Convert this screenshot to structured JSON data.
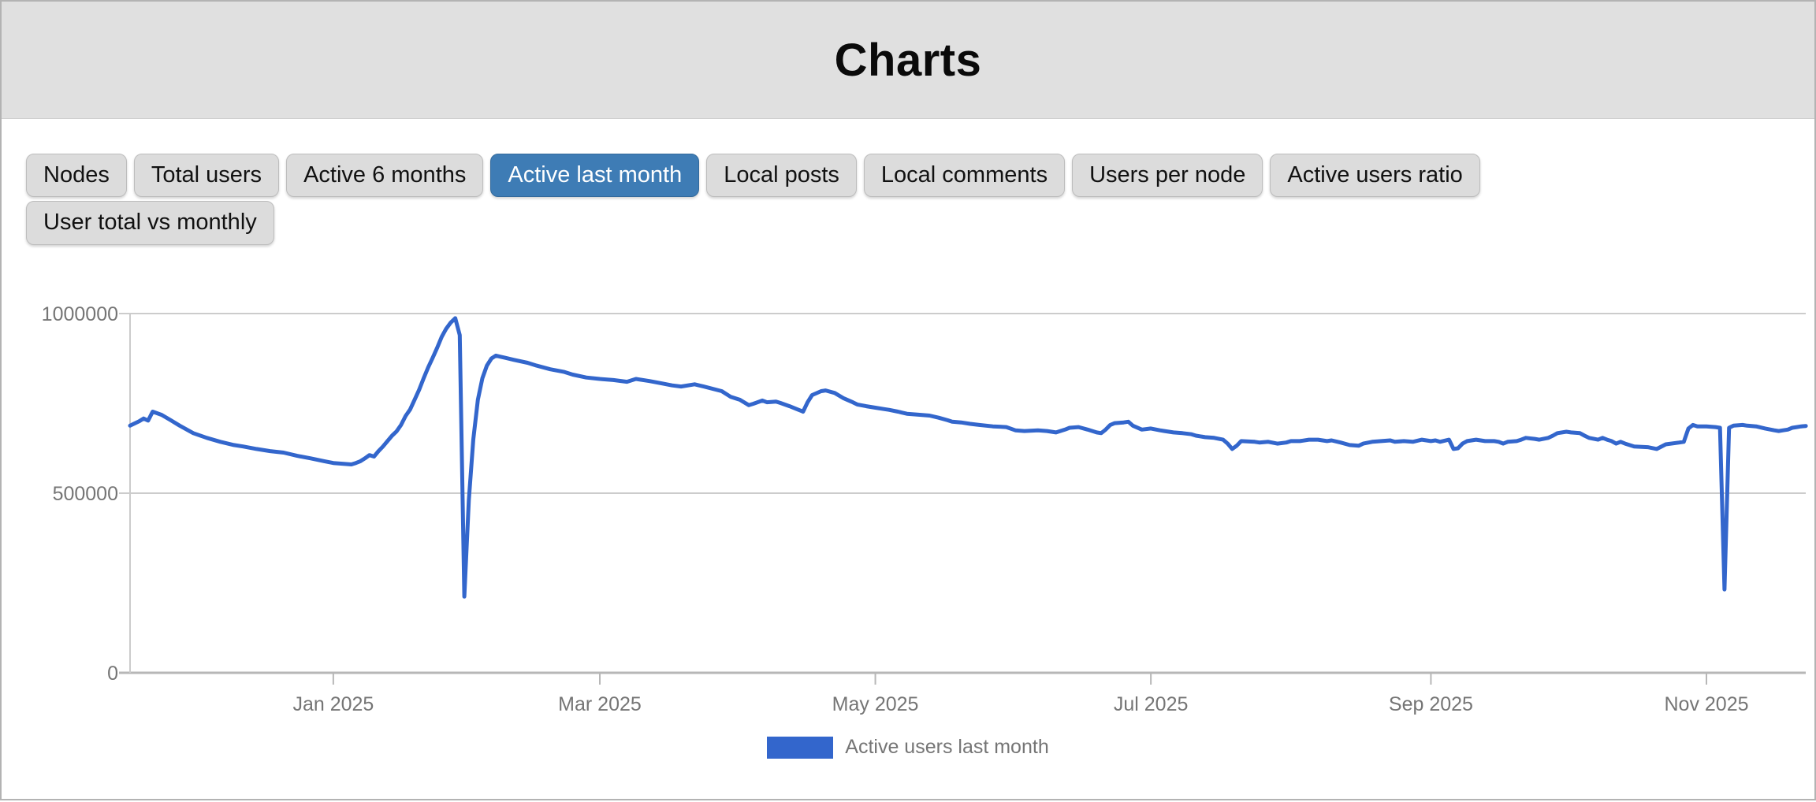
{
  "header": {
    "title": "Charts"
  },
  "tabs": [
    {
      "label": "Nodes",
      "active": false
    },
    {
      "label": "Total users",
      "active": false
    },
    {
      "label": "Active 6 months",
      "active": false
    },
    {
      "label": "Active last month",
      "active": true
    },
    {
      "label": "Local posts",
      "active": false
    },
    {
      "label": "Local comments",
      "active": false
    },
    {
      "label": "Users per node",
      "active": false
    },
    {
      "label": "Active users ratio",
      "active": false
    },
    {
      "label": "User total vs monthly",
      "active": false
    }
  ],
  "colors": {
    "active_tab_blue": "#3e7cb5",
    "line_blue": "#3366cc",
    "gridline": "#cccccc",
    "axis": "#b7b7b7",
    "axis_label": "#757575"
  },
  "chart_data": {
    "type": "line",
    "title": "",
    "xlabel": "",
    "ylabel": "",
    "ylim": [
      0,
      1000000
    ],
    "grid": true,
    "legend_position": "bottom",
    "x_start_date": "2024-11-17",
    "x_total_days": 371,
    "x_ticks": [
      {
        "day": 45,
        "label": "Jan 2025"
      },
      {
        "day": 104,
        "label": "Mar 2025"
      },
      {
        "day": 165,
        "label": "May 2025"
      },
      {
        "day": 226,
        "label": "Jul 2025"
      },
      {
        "day": 288,
        "label": "Sep 2025"
      },
      {
        "day": 349,
        "label": "Nov 2025"
      }
    ],
    "y_ticks": [
      {
        "value": 0,
        "label": "0"
      },
      {
        "value": 500000,
        "label": "500000"
      },
      {
        "value": 1000000,
        "label": "1000000"
      }
    ],
    "legend": {
      "label": "Active users last month"
    },
    "series": [
      {
        "name": "Active users last month",
        "color": "#3366cc",
        "points": [
          [
            0,
            688000
          ],
          [
            2,
            700000
          ],
          [
            3,
            708000
          ],
          [
            4,
            702000
          ],
          [
            5,
            727000
          ],
          [
            7,
            718000
          ],
          [
            9,
            703000
          ],
          [
            11,
            688000
          ],
          [
            14,
            667000
          ],
          [
            17,
            654000
          ],
          [
            20,
            643000
          ],
          [
            23,
            634000
          ],
          [
            25,
            630000
          ],
          [
            28,
            623000
          ],
          [
            31,
            617000
          ],
          [
            34,
            613000
          ],
          [
            37,
            604000
          ],
          [
            40,
            597000
          ],
          [
            43,
            589000
          ],
          [
            45,
            584000
          ],
          [
            47,
            582000
          ],
          [
            49,
            580000
          ],
          [
            50,
            584000
          ],
          [
            51,
            589000
          ],
          [
            52,
            597000
          ],
          [
            53,
            606000
          ],
          [
            54,
            602000
          ],
          [
            55,
            617000
          ],
          [
            56,
            630000
          ],
          [
            57,
            645000
          ],
          [
            58,
            660000
          ],
          [
            59,
            672000
          ],
          [
            60,
            690000
          ],
          [
            61,
            715000
          ],
          [
            62,
            733000
          ],
          [
            63,
            760000
          ],
          [
            64,
            788000
          ],
          [
            65,
            820000
          ],
          [
            66,
            850000
          ],
          [
            67,
            877000
          ],
          [
            68,
            905000
          ],
          [
            69,
            935000
          ],
          [
            70,
            958000
          ],
          [
            71,
            975000
          ],
          [
            72,
            987000
          ],
          [
            73,
            940000
          ],
          [
            74,
            212000
          ],
          [
            75,
            480000
          ],
          [
            76,
            650000
          ],
          [
            77,
            760000
          ],
          [
            78,
            820000
          ],
          [
            79,
            855000
          ],
          [
            80,
            875000
          ],
          [
            81,
            883000
          ],
          [
            83,
            877000
          ],
          [
            85,
            871000
          ],
          [
            88,
            863000
          ],
          [
            90,
            855000
          ],
          [
            93,
            845000
          ],
          [
            96,
            838000
          ],
          [
            98,
            830000
          ],
          [
            101,
            822000
          ],
          [
            104,
            818000
          ],
          [
            107,
            815000
          ],
          [
            110,
            810000
          ],
          [
            112,
            818000
          ],
          [
            115,
            812000
          ],
          [
            118,
            805000
          ],
          [
            120,
            800000
          ],
          [
            122,
            797000
          ],
          [
            125,
            803000
          ],
          [
            127,
            797000
          ],
          [
            131,
            784000
          ],
          [
            133,
            768000
          ],
          [
            135,
            760000
          ],
          [
            137,
            745000
          ],
          [
            138,
            749000
          ],
          [
            140,
            758000
          ],
          [
            141,
            753000
          ],
          [
            143,
            755000
          ],
          [
            144,
            751000
          ],
          [
            146,
            742000
          ],
          [
            148,
            732000
          ],
          [
            149,
            727000
          ],
          [
            150,
            753000
          ],
          [
            151,
            773000
          ],
          [
            153,
            784000
          ],
          [
            154,
            786000
          ],
          [
            156,
            779000
          ],
          [
            158,
            764000
          ],
          [
            160,
            753000
          ],
          [
            161,
            747000
          ],
          [
            163,
            742000
          ],
          [
            165,
            738000
          ],
          [
            167,
            734000
          ],
          [
            168,
            732000
          ],
          [
            170,
            727000
          ],
          [
            172,
            721000
          ],
          [
            174,
            719000
          ],
          [
            177,
            716000
          ],
          [
            179,
            710000
          ],
          [
            181,
            703000
          ],
          [
            182,
            699000
          ],
          [
            184,
            697000
          ],
          [
            186,
            693000
          ],
          [
            188,
            690000
          ],
          [
            191,
            686000
          ],
          [
            194,
            684000
          ],
          [
            196,
            675000
          ],
          [
            198,
            673000
          ],
          [
            201,
            675000
          ],
          [
            203,
            673000
          ],
          [
            205,
            669000
          ],
          [
            207,
            677000
          ],
          [
            208,
            682000
          ],
          [
            210,
            684000
          ],
          [
            212,
            677000
          ],
          [
            214,
            669000
          ],
          [
            215,
            667000
          ],
          [
            216,
            677000
          ],
          [
            217,
            690000
          ],
          [
            218,
            695000
          ],
          [
            220,
            697000
          ],
          [
            221,
            699000
          ],
          [
            222,
            688000
          ],
          [
            224,
            677000
          ],
          [
            226,
            680000
          ],
          [
            228,
            675000
          ],
          [
            229,
            673000
          ],
          [
            231,
            669000
          ],
          [
            233,
            667000
          ],
          [
            235,
            664000
          ],
          [
            236,
            660000
          ],
          [
            238,
            656000
          ],
          [
            240,
            654000
          ],
          [
            242,
            649000
          ],
          [
            243,
            638000
          ],
          [
            244,
            623000
          ],
          [
            245,
            632000
          ],
          [
            246,
            645000
          ],
          [
            249,
            643000
          ],
          [
            250,
            641000
          ],
          [
            252,
            643000
          ],
          [
            254,
            638000
          ],
          [
            256,
            641000
          ],
          [
            257,
            645000
          ],
          [
            259,
            645000
          ],
          [
            261,
            649000
          ],
          [
            263,
            649000
          ],
          [
            265,
            645000
          ],
          [
            266,
            647000
          ],
          [
            268,
            641000
          ],
          [
            270,
            634000
          ],
          [
            272,
            632000
          ],
          [
            273,
            638000
          ],
          [
            275,
            643000
          ],
          [
            277,
            645000
          ],
          [
            279,
            647000
          ],
          [
            280,
            643000
          ],
          [
            282,
            645000
          ],
          [
            284,
            643000
          ],
          [
            286,
            649000
          ],
          [
            288,
            645000
          ],
          [
            289,
            647000
          ],
          [
            290,
            643000
          ],
          [
            292,
            649000
          ],
          [
            293,
            623000
          ],
          [
            294,
            625000
          ],
          [
            295,
            638000
          ],
          [
            296,
            645000
          ],
          [
            298,
            649000
          ],
          [
            300,
            645000
          ],
          [
            302,
            645000
          ],
          [
            303,
            643000
          ],
          [
            304,
            638000
          ],
          [
            305,
            643000
          ],
          [
            307,
            645000
          ],
          [
            308,
            649000
          ],
          [
            309,
            654000
          ],
          [
            311,
            651000
          ],
          [
            312,
            649000
          ],
          [
            314,
            654000
          ],
          [
            315,
            660000
          ],
          [
            316,
            667000
          ],
          [
            318,
            671000
          ],
          [
            319,
            669000
          ],
          [
            321,
            667000
          ],
          [
            322,
            660000
          ],
          [
            323,
            654000
          ],
          [
            325,
            649000
          ],
          [
            326,
            654000
          ],
          [
            327,
            649000
          ],
          [
            328,
            645000
          ],
          [
            329,
            638000
          ],
          [
            330,
            643000
          ],
          [
            331,
            638000
          ],
          [
            333,
            630000
          ],
          [
            336,
            628000
          ],
          [
            338,
            623000
          ],
          [
            340,
            636000
          ],
          [
            343,
            641000
          ],
          [
            344,
            643000
          ],
          [
            345,
            680000
          ],
          [
            346,
            690000
          ],
          [
            347,
            686000
          ],
          [
            349,
            686000
          ],
          [
            351,
            684000
          ],
          [
            352,
            682000
          ],
          [
            353,
            232000
          ],
          [
            354,
            682000
          ],
          [
            355,
            688000
          ],
          [
            357,
            690000
          ],
          [
            358,
            688000
          ],
          [
            360,
            686000
          ],
          [
            362,
            680000
          ],
          [
            364,
            675000
          ],
          [
            365,
            673000
          ],
          [
            366,
            675000
          ],
          [
            367,
            677000
          ],
          [
            368,
            682000
          ],
          [
            369,
            684000
          ],
          [
            370,
            686000
          ],
          [
            371,
            687000
          ]
        ]
      }
    ]
  }
}
